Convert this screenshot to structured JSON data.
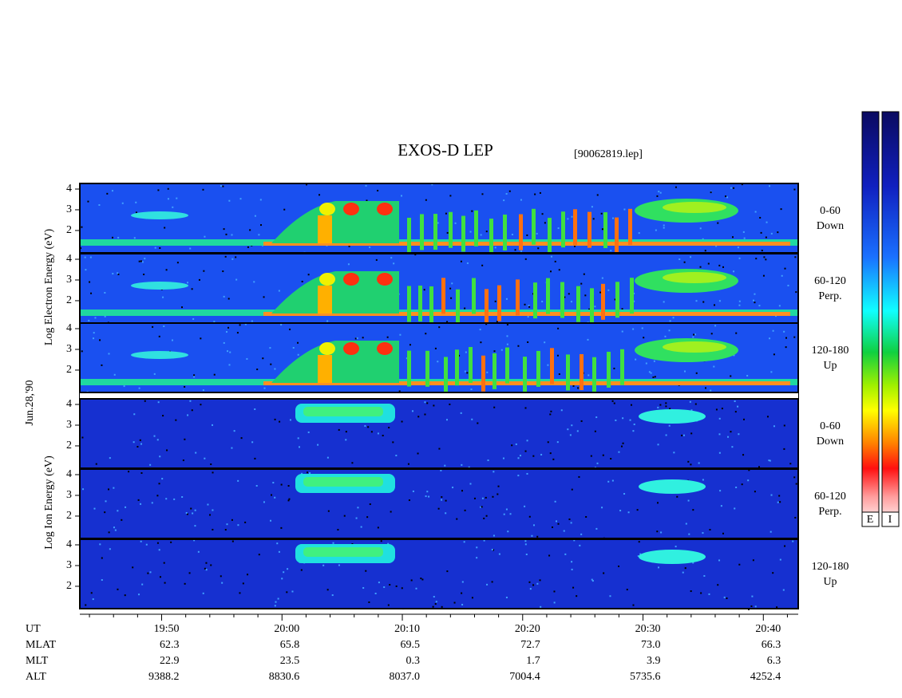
{
  "chart_data": {
    "type": "spectrogram",
    "title": "EXOS-D LEP",
    "subtitle": "[90062819.lep]",
    "date": "Jun.28,'90",
    "ylabels": [
      "Log Electron Energy (eV)",
      "Log Ion Energy (eV)"
    ],
    "colorbar_labels": [
      "E",
      "I"
    ],
    "xlim": [
      1183.2,
      1242.9
    ],
    "xticks": [
      {
        "value": 1190,
        "label": "19:50"
      },
      {
        "value": 1200,
        "label": "20:00"
      },
      {
        "value": 1210,
        "label": "20:10"
      },
      {
        "value": 1220,
        "label": "20:20"
      },
      {
        "value": 1230,
        "label": "20:30"
      },
      {
        "value": 1240,
        "label": "20:40"
      }
    ],
    "xticks_minor": [
      1184,
      1186,
      1188,
      1192,
      1194,
      1196,
      1198,
      1202,
      1204,
      1206,
      1208,
      1212,
      1214,
      1216,
      1218,
      1222,
      1224,
      1226,
      1228,
      1232,
      1234,
      1236,
      1238,
      1242
    ],
    "panels": [
      {
        "label": [
          "0-60",
          "Down"
        ],
        "ylim": [
          0.92,
          4.27
        ],
        "yticks": [
          2,
          3,
          4
        ]
      },
      {
        "label": [
          "60-120",
          "Perp."
        ],
        "ylim": [
          0.92,
          4.27
        ],
        "yticks": [
          2,
          3,
          4
        ]
      },
      {
        "label": [
          "120-180",
          "Up"
        ],
        "ylim": [
          0.92,
          4.27
        ],
        "yticks": [
          2,
          3,
          4
        ]
      },
      {
        "label": [
          "0-60",
          "Down"
        ],
        "ylim": [
          0.92,
          4.27
        ],
        "yticks": [
          2,
          3,
          4
        ]
      },
      {
        "label": [
          "60-120",
          "Perp."
        ],
        "ylim": [
          0.92,
          4.27
        ],
        "yticks": [
          2,
          3,
          4
        ]
      },
      {
        "label": [
          "120-180",
          "Up"
        ],
        "ylim": [
          0.92,
          4.27
        ],
        "yticks": [
          2,
          3,
          4
        ]
      }
    ],
    "orbit": {
      "row_names": [
        "UT",
        "MLAT",
        "MLT",
        "ALT"
      ],
      "rows": [
        [
          "62.3",
          "65.8",
          "69.5",
          "72.7",
          "73.0",
          "66.3"
        ],
        [
          "22.9",
          "23.5",
          "0.3",
          "1.7",
          "3.9",
          "6.3"
        ],
        [
          "9388.2",
          "8830.6",
          "8037.0",
          "7004.4",
          "5735.6",
          "4252.4"
        ]
      ]
    }
  }
}
